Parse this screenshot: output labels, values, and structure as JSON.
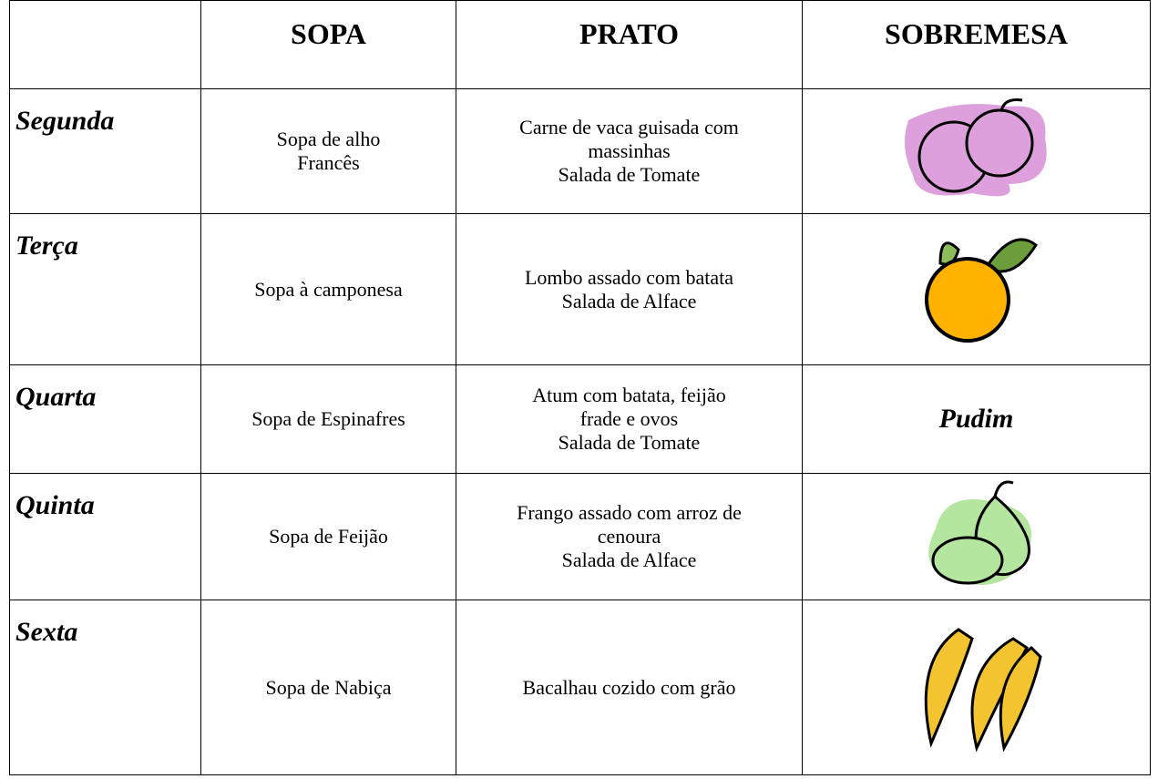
{
  "table": {
    "header": [
      "SOPA",
      "PRATO",
      "SOBREMESA"
    ],
    "rows": [
      {
        "day": "Segunda",
        "soup": [
          "Sopa de alho",
          "Francês"
        ],
        "dish": [
          "Carne de vaca guisada com",
          "massinhas",
          "Salada de Tomate"
        ]
      },
      {
        "day": "Terça",
        "soup": [
          "Sopa à camponesa"
        ],
        "dish": [
          "Lombo assado com batata",
          "Salada de Alface"
        ]
      },
      {
        "day": "Quarta",
        "soup": [
          "Sopa de Espinafres"
        ],
        "dish": [
          "Atum com batata, feijão",
          "frade e ovos",
          "Salada de Tomate"
        ],
        "dessert": "Pudim"
      },
      {
        "day": "Quinta",
        "soup": [
          "Sopa de Feijão"
        ],
        "dish": [
          "Frango assado com arroz de",
          "cenoura",
          "Salada de Alface"
        ]
      },
      {
        "day": "Sexta",
        "soup": [
          "Sopa de Nabiça"
        ],
        "dish": [
          "Bacalhau cozido com grão"
        ]
      }
    ]
  }
}
